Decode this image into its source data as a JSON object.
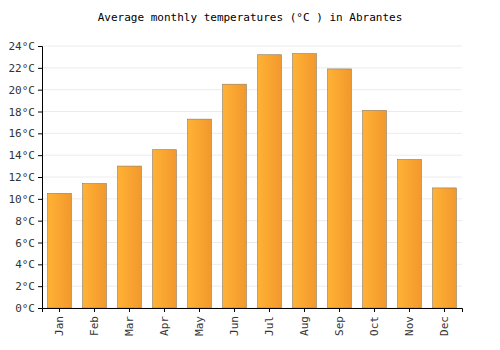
{
  "chart_data": {
    "type": "bar",
    "title": "Average monthly temperatures (°C ) in Abrantes",
    "categories": [
      "Jan",
      "Feb",
      "Mar",
      "Apr",
      "May",
      "Jun",
      "Jul",
      "Aug",
      "Sep",
      "Oct",
      "Nov",
      "Dec"
    ],
    "values": [
      10.5,
      11.4,
      13.0,
      14.5,
      17.3,
      20.5,
      23.2,
      23.3,
      21.9,
      18.1,
      13.6,
      11.0
    ],
    "color": "#ffa030",
    "ylim": [
      0,
      24
    ],
    "yticks": [
      {
        "value": 0,
        "label": "0°C"
      },
      {
        "value": 2,
        "label": "2°C"
      },
      {
        "value": 4,
        "label": "4°C"
      },
      {
        "value": 6,
        "label": "6°C"
      },
      {
        "value": 8,
        "label": "8°C"
      },
      {
        "value": 10,
        "label": "10°C"
      },
      {
        "value": 12,
        "label": "12°C"
      },
      {
        "value": 14,
        "label": "14°C"
      },
      {
        "value": 16,
        "label": "16°C"
      },
      {
        "value": 18,
        "label": "18°C"
      },
      {
        "value": 20,
        "label": "20°C"
      },
      {
        "value": 22,
        "label": "22°C"
      },
      {
        "value": 24,
        "label": "24°C"
      }
    ],
    "grid": true
  }
}
